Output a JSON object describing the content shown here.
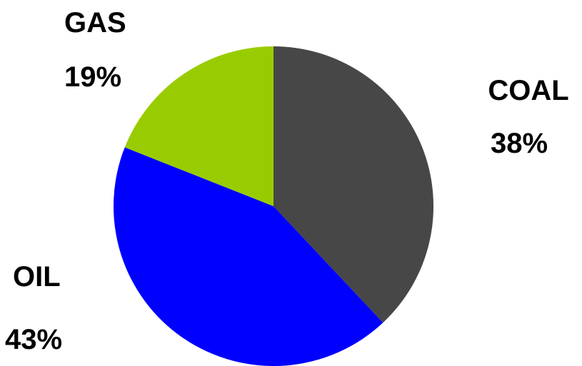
{
  "chart_data": {
    "type": "pie",
    "title": "",
    "slices": [
      {
        "label": "COAL",
        "value": 38,
        "value_label": "38%",
        "color": "#474747"
      },
      {
        "label": "OIL",
        "value": 43,
        "value_label": "43%",
        "color": "#0000ff"
      },
      {
        "label": "GAS",
        "value": 19,
        "value_label": "19%",
        "color": "#99cc00"
      }
    ],
    "start_angle": "12 o'clock",
    "direction": "clockwise",
    "legend": "none",
    "labels": "outside"
  }
}
